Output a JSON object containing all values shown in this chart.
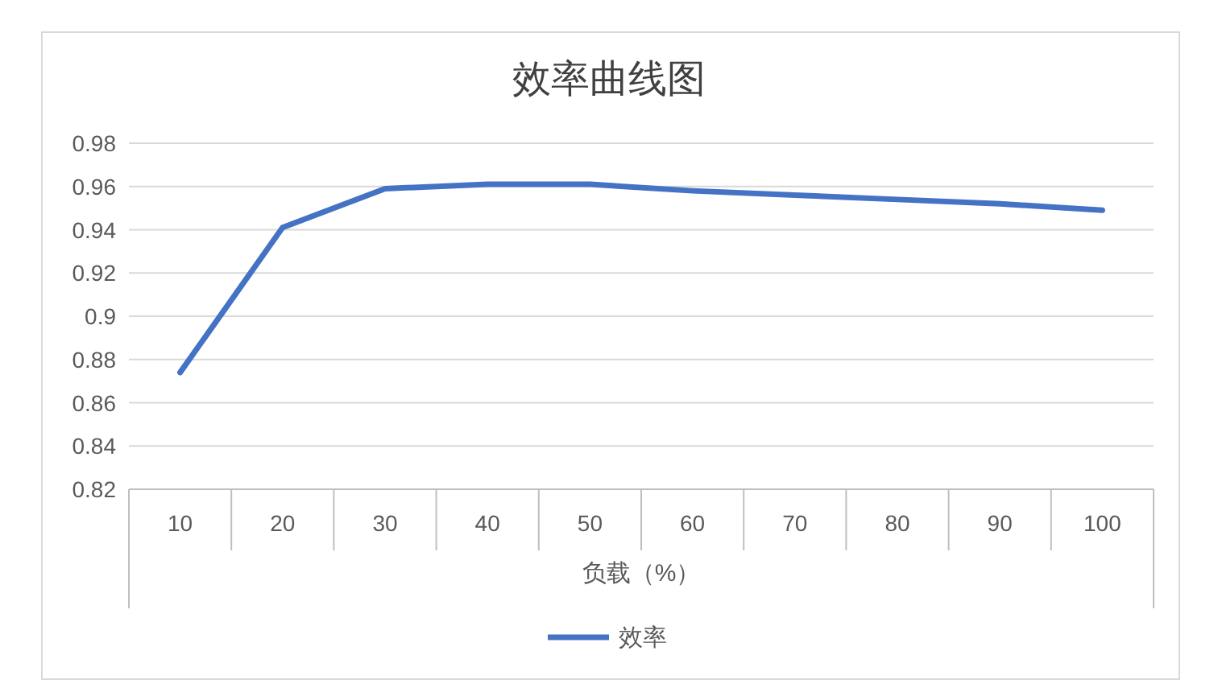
{
  "chart_data": {
    "type": "line",
    "title": "效率曲线图",
    "xlabel": "负载（%）",
    "categories": [
      "10",
      "20",
      "30",
      "40",
      "50",
      "60",
      "70",
      "80",
      "90",
      "100"
    ],
    "series": [
      {
        "name": "效率",
        "color": "#4472c4",
        "values": [
          0.874,
          0.941,
          0.959,
          0.961,
          0.961,
          0.958,
          0.956,
          0.954,
          0.952,
          0.949
        ]
      }
    ],
    "ylim": [
      0.82,
      0.98
    ],
    "yticks": [
      0.82,
      0.84,
      0.86,
      0.88,
      0.9,
      0.92,
      0.94,
      0.96,
      0.98
    ],
    "grid": "y",
    "legend": "bottom",
    "marker": "none",
    "line_style": "solid"
  }
}
